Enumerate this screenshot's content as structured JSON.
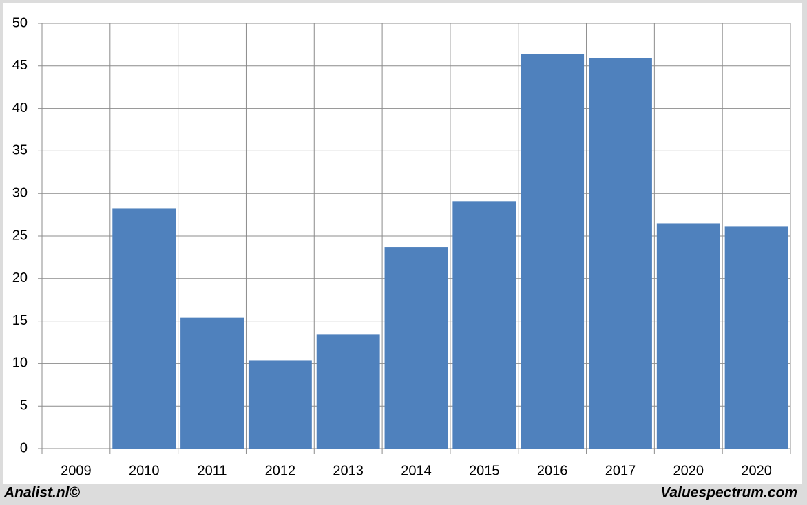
{
  "chart_data": {
    "type": "bar",
    "categories": [
      "2009",
      "2010",
      "2011",
      "2012",
      "2013",
      "2014",
      "2015",
      "2016",
      "2017",
      "2020",
      "2020"
    ],
    "values": [
      null,
      28.2,
      15.4,
      10.4,
      13.4,
      23.7,
      29.1,
      46.4,
      45.9,
      26.5,
      26.1
    ],
    "color": "#4f81bd",
    "ylim": [
      0,
      50
    ],
    "yticks": [
      0,
      5,
      10,
      15,
      20,
      25,
      30,
      35,
      40,
      45,
      50
    ],
    "grid": true,
    "footer_left": "Analist.nl©",
    "footer_right": "Valuespectrum.com"
  }
}
